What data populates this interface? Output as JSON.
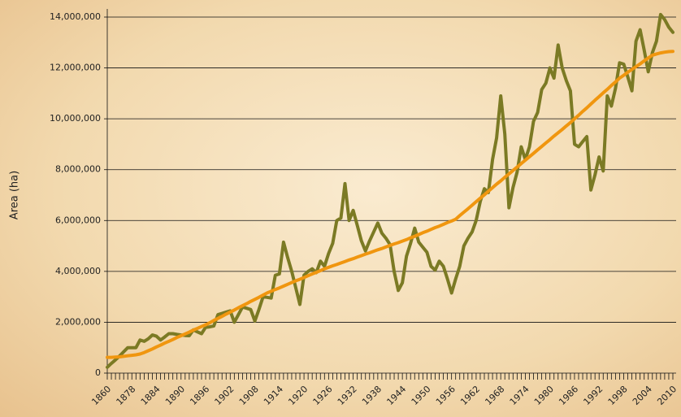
{
  "chart_data": {
    "type": "line",
    "y_label": "Area (ha)",
    "categories": [
      "1860",
      null,
      null,
      null,
      null,
      null,
      "1878",
      null,
      null,
      null,
      null,
      null,
      "1884",
      null,
      null,
      null,
      null,
      null,
      "1890",
      null,
      null,
      null,
      null,
      null,
      "1896",
      null,
      null,
      null,
      null,
      null,
      "1902",
      null,
      null,
      null,
      null,
      null,
      "1908",
      null,
      null,
      null,
      null,
      null,
      "1914",
      null,
      null,
      null,
      null,
      null,
      "1920",
      null,
      null,
      null,
      null,
      null,
      "1926",
      null,
      null,
      null,
      null,
      null,
      "1932",
      null,
      null,
      null,
      null,
      null,
      "1938",
      null,
      null,
      null,
      null,
      null,
      "1944",
      null,
      null,
      null,
      null,
      null,
      "1950",
      null,
      null,
      null,
      null,
      null,
      "1956",
      null,
      null,
      null,
      null,
      null,
      "1962",
      null,
      null,
      null,
      null,
      null,
      "1968",
      null,
      null,
      null,
      null,
      null,
      "1974",
      null,
      null,
      null,
      null,
      null,
      "1980",
      null,
      null,
      null,
      null,
      null,
      "1986",
      null,
      null,
      null,
      null,
      null,
      "1992",
      null,
      null,
      null,
      null,
      null,
      "1998",
      null,
      null,
      null,
      null,
      null,
      "2004",
      null,
      null,
      null,
      null,
      null,
      "2010"
    ],
    "series": [
      {
        "color": "#7b7a24",
        "values": [
          230000,
          380000,
          520000,
          670000,
          840000,
          1000000,
          1000000,
          1000000,
          1300000,
          1250000,
          1350000,
          1500000,
          1450000,
          1300000,
          1420000,
          1550000,
          1550000,
          1520000,
          1500000,
          1480000,
          1470000,
          1700000,
          1620000,
          1550000,
          1800000,
          1820000,
          1850000,
          2300000,
          2350000,
          2400000,
          2450000,
          2000000,
          2300000,
          2600000,
          2550000,
          2500000,
          2050000,
          2500000,
          3000000,
          2980000,
          2950000,
          3850000,
          3900000,
          5150000,
          4550000,
          4000000,
          3350000,
          2700000,
          3850000,
          4000000,
          4100000,
          3950000,
          4400000,
          4200000,
          4700000,
          5100000,
          6000000,
          6100000,
          7450000,
          6000000,
          6400000,
          5800000,
          5200000,
          4800000,
          5200000,
          5550000,
          5900000,
          5500000,
          5300000,
          5050000,
          4000000,
          3250000,
          3550000,
          4600000,
          5100000,
          5700000,
          5150000,
          4950000,
          4750000,
          4200000,
          4050000,
          4400000,
          4200000,
          3700000,
          3150000,
          3700000,
          4200000,
          5000000,
          5300000,
          5550000,
          6000000,
          6750000,
          7250000,
          7100000,
          8400000,
          9250000,
          10900000,
          9400000,
          6500000,
          7300000,
          7900000,
          8900000,
          8400000,
          8900000,
          9900000,
          10250000,
          11150000,
          11400000,
          12000000,
          11600000,
          12900000,
          12000000,
          11500000,
          11100000,
          9000000,
          8900000,
          9100000,
          9300000,
          7200000,
          7800000,
          8500000,
          7950000,
          10900000,
          10500000,
          11200000,
          12200000,
          12150000,
          11650000,
          11100000,
          13050000,
          13500000,
          12700000,
          11850000,
          12600000,
          13050000,
          14100000,
          13900000,
          13600000,
          13400000
        ]
      },
      {
        "color": "#f0960f",
        "values": [
          620000,
          620000,
          630000,
          640000,
          660000,
          680000,
          700000,
          720000,
          750000,
          810000,
          880000,
          950000,
          1030000,
          1100000,
          1180000,
          1250000,
          1320000,
          1400000,
          1470000,
          1540000,
          1610000,
          1690000,
          1760000,
          1830000,
          1900000,
          1980000,
          2070000,
          2150000,
          2230000,
          2320000,
          2400000,
          2480000,
          2570000,
          2650000,
          2730000,
          2820000,
          2900000,
          2980000,
          3070000,
          3150000,
          3220000,
          3290000,
          3350000,
          3420000,
          3490000,
          3560000,
          3630000,
          3690000,
          3760000,
          3830000,
          3900000,
          3960000,
          4030000,
          4100000,
          4160000,
          4220000,
          4270000,
          4330000,
          4390000,
          4450000,
          4500000,
          4560000,
          4620000,
          4680000,
          4730000,
          4790000,
          4850000,
          4900000,
          4960000,
          5020000,
          5080000,
          5130000,
          5190000,
          5250000,
          5320000,
          5380000,
          5450000,
          5520000,
          5580000,
          5650000,
          5720000,
          5780000,
          5850000,
          5920000,
          5980000,
          6050000,
          6190000,
          6330000,
          6460000,
          6600000,
          6740000,
          6880000,
          7010000,
          7150000,
          7290000,
          7430000,
          7560000,
          7700000,
          7830000,
          7970000,
          8100000,
          8240000,
          8370000,
          8510000,
          8640000,
          8780000,
          8910000,
          9050000,
          9180000,
          9320000,
          9450000,
          9580000,
          9720000,
          9850000,
          10000000,
          10140000,
          10290000,
          10430000,
          10580000,
          10730000,
          10870000,
          11020000,
          11160000,
          11310000,
          11450000,
          11600000,
          11710000,
          11830000,
          11940000,
          12050000,
          12160000,
          12280000,
          12390000,
          12500000,
          12550000,
          12590000,
          12620000,
          12640000,
          12650000
        ]
      }
    ],
    "ylim": [
      0,
      14000000
    ],
    "yticks": [
      0,
      {
        "value": 2000000,
        "label": "2,000,000"
      },
      {
        "value": 4000000,
        "label": "4,000,000"
      },
      {
        "value": 6000000,
        "label": "6,000,000"
      },
      {
        "value": 8000000,
        "label": "8,000,000"
      },
      {
        "value": 10000000,
        "label": "10,000,000"
      },
      {
        "value": 12000000,
        "label": "12,000,000"
      },
      {
        "value": 14000000,
        "label": "14,000,000"
      }
    ],
    "grid": true
  }
}
